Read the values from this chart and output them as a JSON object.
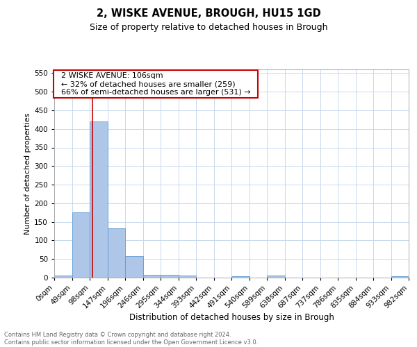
{
  "title1": "2, WISKE AVENUE, BROUGH, HU15 1GD",
  "title2": "Size of property relative to detached houses in Brough",
  "xlabel": "Distribution of detached houses by size in Brough",
  "ylabel": "Number of detached properties",
  "bin_edges": [
    0,
    49,
    98,
    147,
    196,
    245,
    294,
    343,
    392,
    441,
    490,
    539,
    588,
    637,
    686,
    735,
    784,
    833,
    882,
    931,
    980
  ],
  "bin_labels": [
    "0sqm",
    "49sqm",
    "98sqm",
    "147sqm",
    "196sqm",
    "246sqm",
    "295sqm",
    "344sqm",
    "393sqm",
    "442sqm",
    "491sqm",
    "540sqm",
    "589sqm",
    "638sqm",
    "687sqm",
    "737sqm",
    "786sqm",
    "835sqm",
    "884sqm",
    "933sqm",
    "982sqm"
  ],
  "bar_heights": [
    5,
    175,
    420,
    133,
    58,
    8,
    8,
    5,
    0,
    0,
    4,
    0,
    5,
    0,
    0,
    0,
    0,
    0,
    0,
    3
  ],
  "bar_color": "#aec6e8",
  "bar_edge_color": "#5b9bd5",
  "ylim": [
    0,
    560
  ],
  "yticks": [
    0,
    50,
    100,
    150,
    200,
    250,
    300,
    350,
    400,
    450,
    500,
    550
  ],
  "property_line_x": 106,
  "property_line_color": "#cc0000",
  "annotation_text": "  2 WISKE AVENUE: 106sqm  \n  ← 32% of detached houses are smaller (259)  \n  66% of semi-detached houses are larger (531) →  ",
  "annotation_box_color": "#cc0000",
  "footer_text": "Contains HM Land Registry data © Crown copyright and database right 2024.\nContains public sector information licensed under the Open Government Licence v3.0.",
  "bg_color": "#ffffff",
  "grid_color": "#c8d8ed",
  "title1_fontsize": 10.5,
  "title2_fontsize": 9,
  "xlabel_fontsize": 8.5,
  "ylabel_fontsize": 8,
  "tick_fontsize": 7.5,
  "ann_fontsize": 8,
  "footer_fontsize": 6
}
